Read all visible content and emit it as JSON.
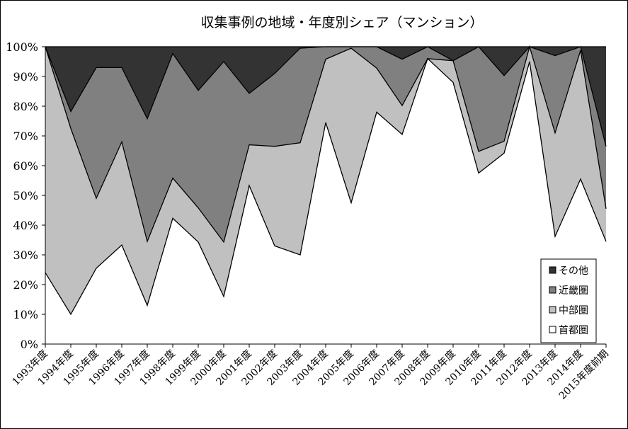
{
  "chart_data": {
    "type": "area",
    "stacked": true,
    "percent": true,
    "title": "収集事例の地域・年度別シェア（マンション）",
    "xlabel": "",
    "ylabel": "",
    "ylim": [
      0,
      100
    ],
    "yticks": [
      "0%",
      "10%",
      "20%",
      "30%",
      "40%",
      "50%",
      "60%",
      "70%",
      "80%",
      "90%",
      "100%"
    ],
    "grid": false,
    "legend_position": "bottom-right",
    "categories": [
      "1993年度",
      "1994年度",
      "1995年度",
      "1996年度",
      "1997年度",
      "1998年度",
      "1999年度",
      "2000年度",
      "2001年度",
      "2002年度",
      "2003年度",
      "2004年度",
      "2005年度",
      "2006年度",
      "2007年度",
      "2008年度",
      "2009年度",
      "2010年度",
      "2011年度",
      "2012年度",
      "2013年度",
      "2014年度",
      "2015年度前期"
    ],
    "series": [
      {
        "name": "首都圏",
        "color": "#ffffff",
        "values": [
          24,
          10,
          25.5,
          33.3,
          13,
          42.3,
          34.3,
          16,
          53.3,
          33,
          30,
          74.5,
          47.5,
          78,
          70.5,
          96,
          88,
          57.5,
          64.2,
          95,
          36.2,
          55.5,
          34.5
        ]
      },
      {
        "name": "中部圏",
        "color": "#c0c0c0",
        "values": [
          76,
          62.5,
          23.5,
          34.7,
          21.5,
          13.5,
          11.5,
          18.3,
          13.7,
          33.5,
          37.7,
          21.3,
          52,
          14.8,
          9.7,
          0,
          7.3,
          7.3,
          4,
          5,
          34.8,
          43.3,
          11
        ]
      },
      {
        "name": "近畿圏",
        "color": "#808080",
        "values": [
          0,
          5.7,
          44,
          25,
          41.3,
          41.9,
          39.5,
          60.7,
          17.3,
          24.5,
          31.8,
          4.2,
          0.5,
          7.2,
          15.6,
          4,
          0,
          35.2,
          22.1,
          0,
          26,
          1.2,
          21
        ]
      },
      {
        "name": "その他",
        "color": "#333333",
        "values": [
          0,
          21.8,
          7,
          7,
          24.2,
          2.3,
          14.7,
          5,
          15.7,
          9,
          0.5,
          0,
          0,
          0,
          4.2,
          0,
          4.7,
          0,
          9.7,
          0,
          3,
          0,
          33.5
        ]
      }
    ]
  }
}
